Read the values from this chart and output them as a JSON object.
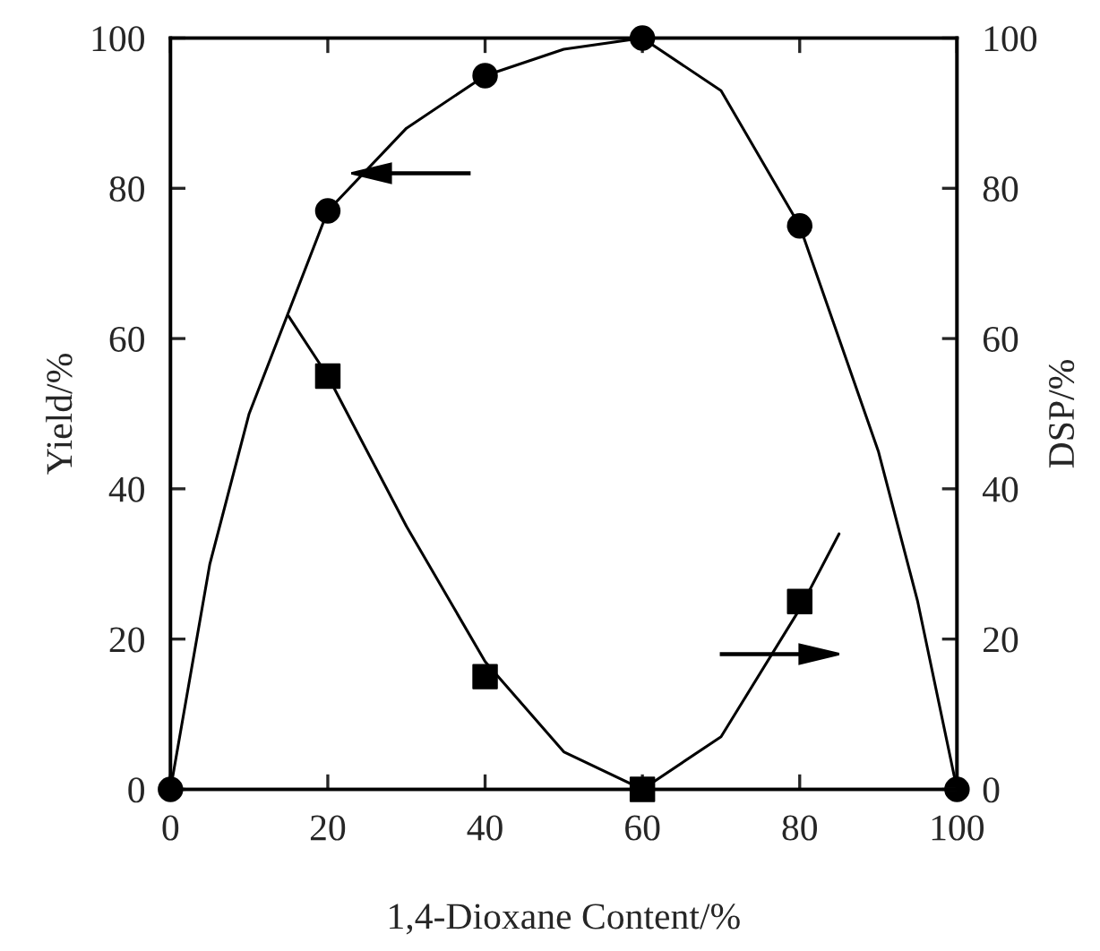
{
  "chart_data": {
    "type": "scatter",
    "xlabel": "1,4-Dioxane Content/%",
    "ylabel": "Yield/%",
    "y2label": "DSP/%",
    "xlim": [
      0,
      100
    ],
    "xticks": [
      0,
      20,
      40,
      60,
      80,
      100
    ],
    "ylim": [
      0,
      100
    ],
    "yticks": [
      0,
      20,
      40,
      60,
      80,
      100
    ],
    "y2lim": [
      0,
      100
    ],
    "y2ticks": [
      0,
      20,
      40,
      60,
      80,
      100
    ],
    "grid": false,
    "legend": false,
    "series": [
      {
        "marker": "circle",
        "color": "#000000",
        "x": [
          0,
          20,
          40,
          60,
          80,
          100
        ],
        "values": [
          0,
          77,
          95,
          100,
          75,
          0
        ]
      },
      {
        "marker": "square",
        "color": "#000000",
        "x": [
          20,
          40,
          60,
          80
        ],
        "values": [
          55,
          15,
          0,
          25
        ]
      },
      {
        "type": "line",
        "marker": "none",
        "color": "#000000",
        "x": [
          0,
          5,
          10,
          20,
          30,
          40,
          50,
          60,
          70,
          80,
          90,
          95,
          100
        ],
        "values": [
          0,
          30,
          50,
          77,
          88,
          95,
          98.5,
          100,
          93,
          75,
          45,
          25,
          0
        ]
      },
      {
        "type": "line",
        "marker": "none",
        "color": "#000000",
        "x": [
          15,
          20,
          30,
          40,
          50,
          60,
          70,
          80,
          85
        ],
        "values": [
          63,
          55,
          35,
          17,
          5,
          0,
          7,
          24,
          34
        ]
      }
    ]
  }
}
